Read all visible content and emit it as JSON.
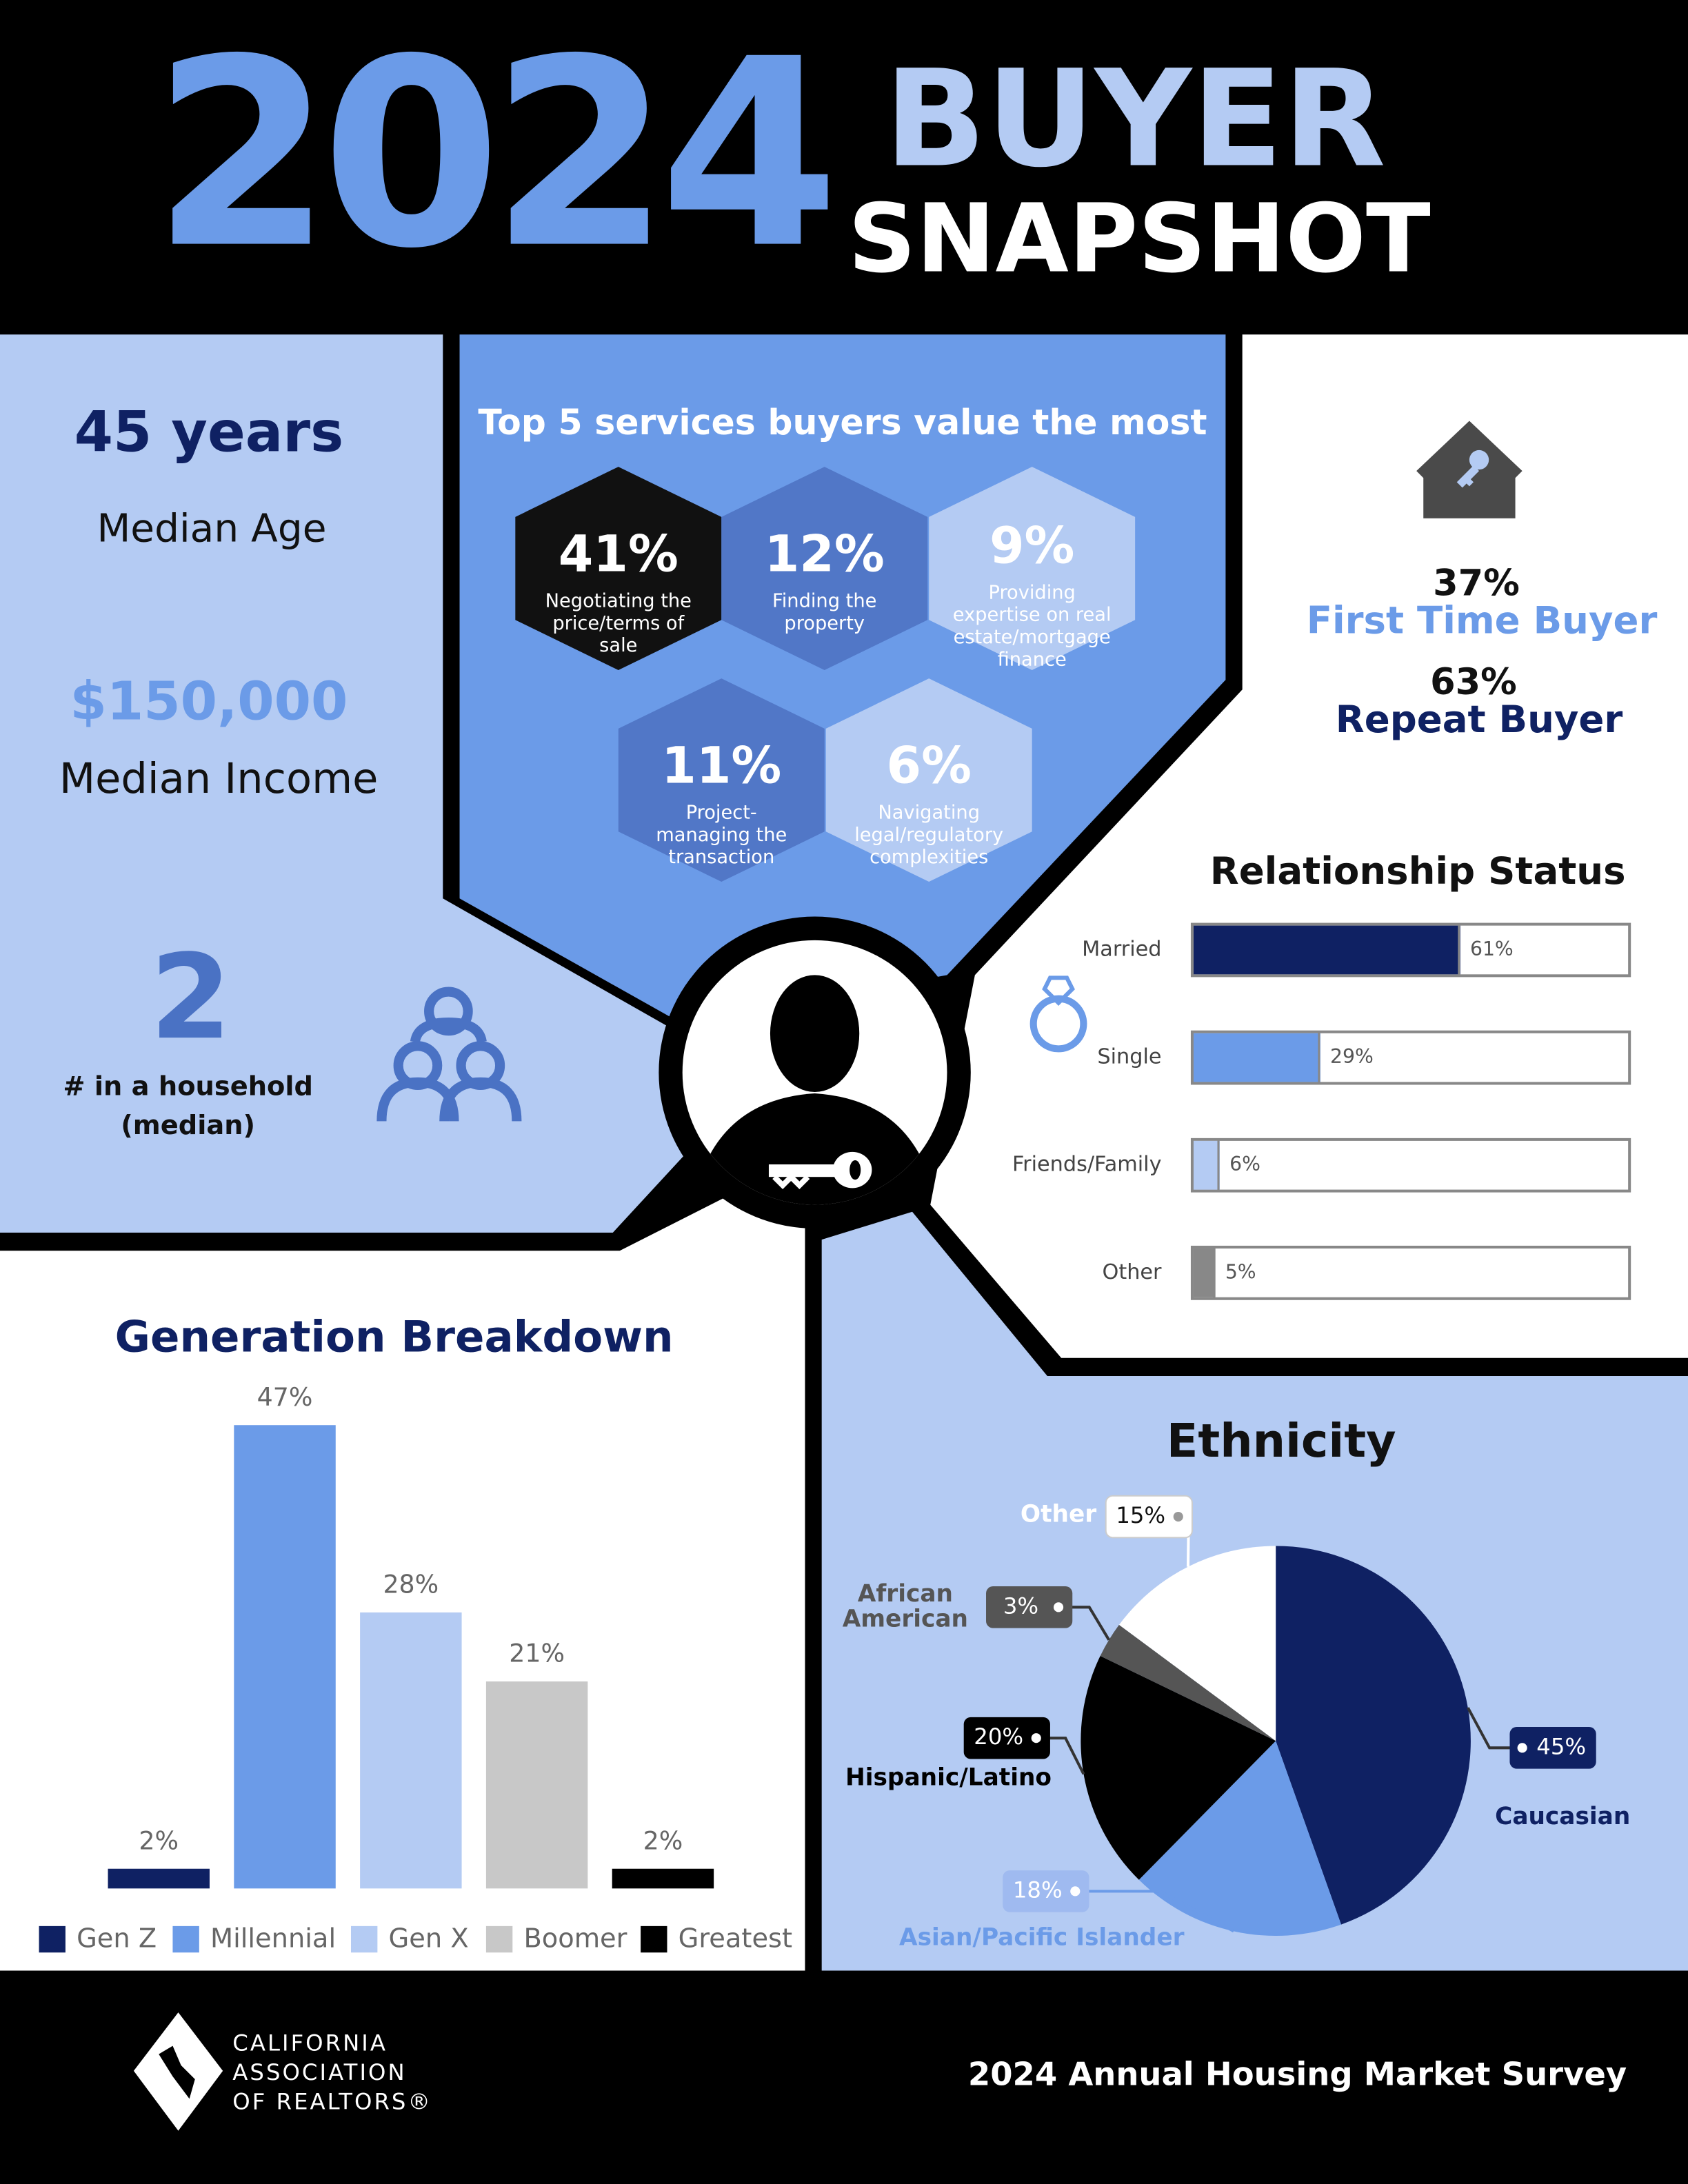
{
  "header": {
    "year": "2024",
    "title_1": "BUYER",
    "title_2": "SNAPSHOT"
  },
  "stats": {
    "median_age": "45 years",
    "median_age_label": "Median Age",
    "median_income": "$150,000",
    "median_income_label": "Median Income",
    "household": "2",
    "household_label_lines": [
      "# in a household",
      "(median)"
    ]
  },
  "services": {
    "title": "Top 5 services buyers value the most",
    "items": [
      {
        "percent": "41%",
        "lines": [
          "Negotiating the",
          "price/terms of",
          "sale"
        ]
      },
      {
        "percent": "12%",
        "lines": [
          "Finding the",
          "property"
        ]
      },
      {
        "percent": "9%",
        "lines": [
          "Providing",
          "expertise on real",
          "estate/mortgage",
          "finance"
        ]
      },
      {
        "percent": "11%",
        "lines": [
          "Project-",
          "managing the",
          "transaction"
        ]
      },
      {
        "percent": "6%",
        "lines": [
          "Navigating",
          "legal/regulatory",
          "complexities"
        ]
      }
    ]
  },
  "buyers": {
    "first_time": {
      "percent": "37%",
      "label": "First Time Buyer"
    },
    "repeat": {
      "percent": "63%",
      "label": "Repeat Buyer"
    }
  },
  "chart_data": [
    {
      "type": "hbar",
      "title": "Relationship Status",
      "categories": [
        "Married",
        "Single",
        "Friends/Family",
        "Other"
      ],
      "values": [
        61,
        29,
        6,
        5
      ],
      "value_labels": [
        "61%",
        "29%",
        "6%",
        "5%"
      ],
      "colors": [
        "#0f2163",
        "#6b9be8",
        "#b4cbf3",
        "#888888"
      ],
      "xlim": [
        0,
        100
      ]
    },
    {
      "type": "bar",
      "title": "Generation Breakdown",
      "categories": [
        "Gen Z",
        "Millennial",
        "Gen X",
        "Boomer",
        "Greatest"
      ],
      "values": [
        2,
        47,
        28,
        21,
        2
      ],
      "value_labels": [
        "2%",
        "47%",
        "28%",
        "21%",
        "2%"
      ],
      "colors": [
        "#0f2163",
        "#6b9be8",
        "#b4cbf3",
        "#c8c8c8",
        "#000000"
      ],
      "ylim": [
        0,
        50
      ],
      "legend": "bottom"
    },
    {
      "type": "pie",
      "title": "Ethnicity",
      "categories": [
        "Caucasian",
        "Asian/Pacific Islander",
        "Hispanic/Latino",
        "African American",
        "Other"
      ],
      "values": [
        45,
        18,
        20,
        3,
        15
      ],
      "value_labels": [
        "45%",
        "18%",
        "20%",
        "3%",
        "15%"
      ],
      "colors": [
        "#0f2163",
        "#6b9be8",
        "#000000",
        "#555555",
        "#ffffff"
      ]
    }
  ],
  "footer": {
    "logo_lines": [
      "CALIFORNIA",
      "ASSOCIATION",
      "OF REALTORS®"
    ],
    "survey": "2024 Annual Housing Market Survey"
  }
}
